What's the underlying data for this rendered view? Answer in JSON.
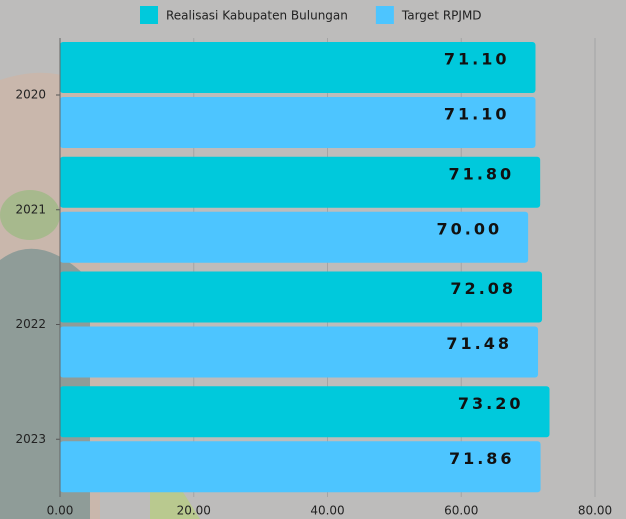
{
  "chart_data": {
    "type": "hbar",
    "categories": [
      "2020",
      "2021",
      "2022",
      "2023"
    ],
    "series": [
      {
        "name": "Realisasi Kabupaten Bulungan",
        "color": "#00c9dc",
        "values": [
          71.1,
          71.8,
          72.08,
          73.2
        ],
        "value_labels": [
          "71.10",
          "71.80",
          "72.08",
          "73.20"
        ]
      },
      {
        "name": "Target RPJMD",
        "color": "#4dc5ff",
        "values": [
          71.1,
          70,
          71.48,
          71.86
        ],
        "value_labels": [
          "71.10",
          "70.00",
          "71.48",
          "71.86"
        ]
      }
    ],
    "xlim": [
      0,
      80
    ],
    "xticks": [
      {
        "value": 0,
        "label": "0.00"
      },
      {
        "value": 20,
        "label": "20.00"
      },
      {
        "value": 40,
        "label": "40.00"
      },
      {
        "value": 60,
        "label": "60.00"
      },
      {
        "value": 80,
        "label": "80.00"
      }
    ],
    "grid": true,
    "legend": "top"
  }
}
